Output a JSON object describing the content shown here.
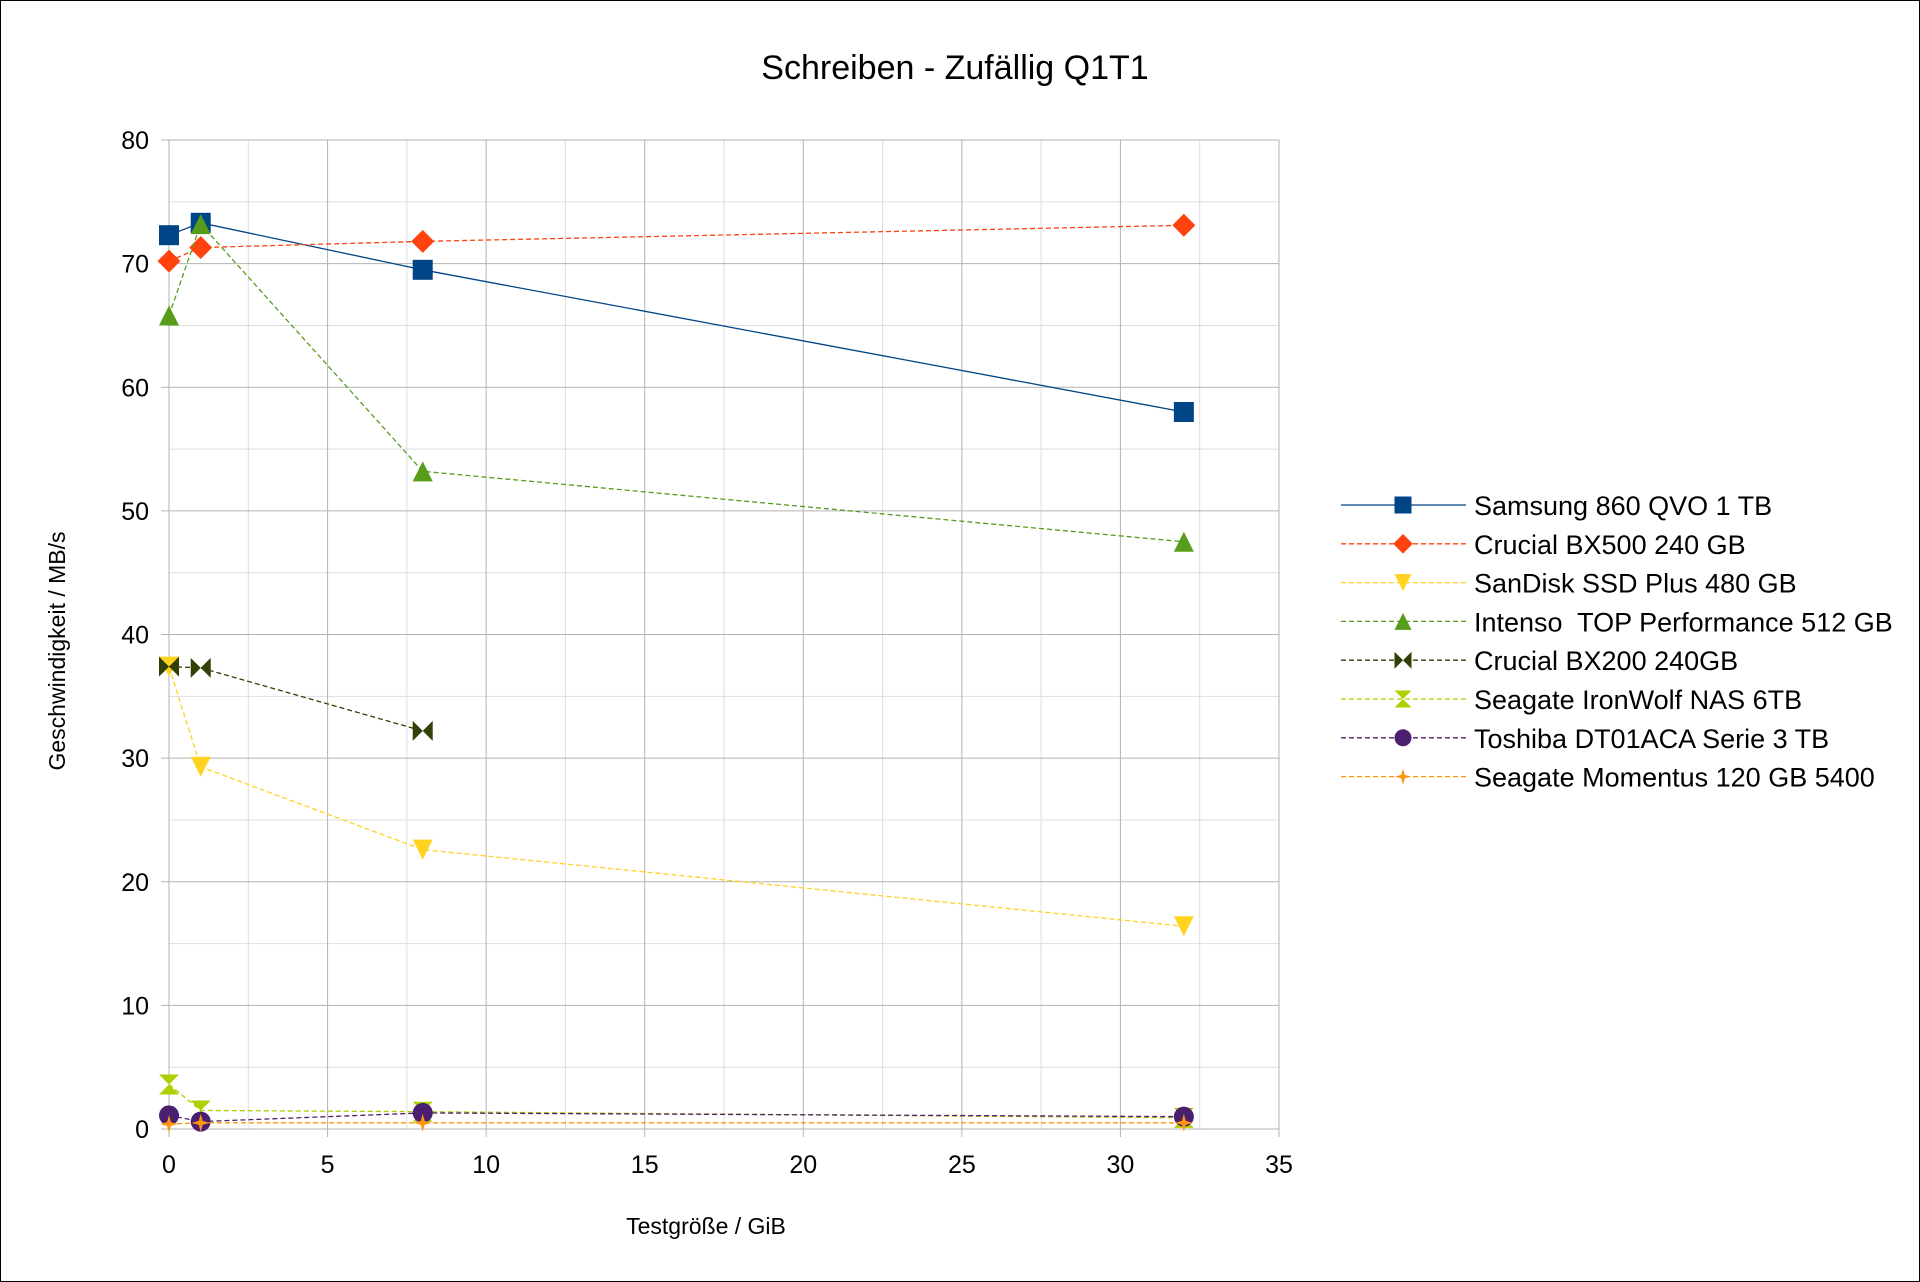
{
  "chart_data": {
    "type": "line",
    "title": "Schreiben - Zufällig Q1T1",
    "xlabel": "Testgröße / GiB",
    "ylabel": "Geschwindigkeit / MB/s",
    "xlim": [
      0,
      35
    ],
    "ylim": [
      0,
      80
    ],
    "xticks": [
      0,
      5,
      10,
      15,
      20,
      25,
      30,
      35
    ],
    "yticks": [
      0,
      10,
      20,
      30,
      40,
      50,
      60,
      70,
      80
    ],
    "grid": true,
    "legend_position": "right",
    "series": [
      {
        "name": "Samsung 860 QVO 1 TB",
        "color": "#004586",
        "marker": "square",
        "dash": "solid",
        "x": [
          0,
          1,
          8,
          32
        ],
        "y": [
          72.3,
          73.3,
          69.5,
          58
        ]
      },
      {
        "name": "Crucial BX500 240 GB",
        "color": "#ff420e",
        "marker": "diamond",
        "dash": "dashed",
        "x": [
          0,
          1,
          8,
          32
        ],
        "y": [
          70.2,
          71.3,
          71.8,
          73.1
        ]
      },
      {
        "name": "SanDisk SSD Plus 480 GB",
        "color": "#ffd320",
        "marker": "triangle-down",
        "dash": "dashed",
        "x": [
          0,
          1,
          8,
          32
        ],
        "y": [
          37.4,
          29.3,
          22.6,
          16.4
        ]
      },
      {
        "name": "Intenso  TOP Performance 512 GB",
        "color": "#579d1c",
        "marker": "triangle-up",
        "dash": "dashed",
        "x": [
          0,
          1,
          8,
          32
        ],
        "y": [
          65.8,
          73.2,
          53.2,
          47.5
        ]
      },
      {
        "name": "Crucial BX200 240GB",
        "color": "#314004",
        "marker": "bowtie",
        "dash": "dashed",
        "x": [
          0,
          1,
          8
        ],
        "y": [
          37.4,
          37.3,
          32.2
        ]
      },
      {
        "name": "Seagate IronWolf NAS 6TB",
        "color": "#aecf00",
        "marker": "hourglass",
        "dash": "dashed",
        "x": [
          0,
          1,
          8,
          32
        ],
        "y": [
          3.6,
          1.5,
          1.4,
          0.9
        ]
      },
      {
        "name": "Toshiba DT01ACA Serie 3 TB",
        "color": "#4b1f6f",
        "marker": "circle",
        "dash": "dashed",
        "x": [
          0,
          1,
          8,
          32
        ],
        "y": [
          1.1,
          0.6,
          1.3,
          1.0
        ]
      },
      {
        "name": "Seagate Momentus 120 GB 5400",
        "color": "#ff950e",
        "marker": "star",
        "dash": "dashed",
        "x": [
          0,
          1,
          8,
          32
        ],
        "y": [
          0.4,
          0.5,
          0.5,
          0.5
        ]
      }
    ]
  }
}
